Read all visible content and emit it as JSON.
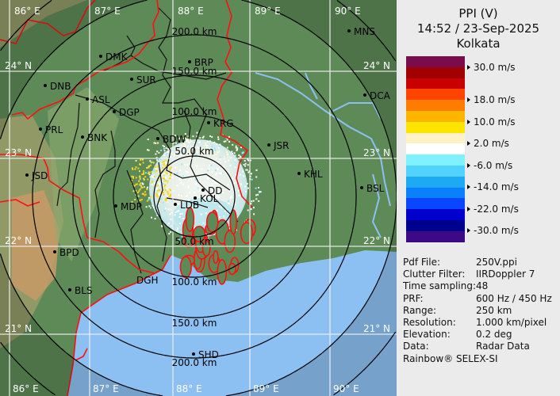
{
  "header": {
    "product": "PPI (V)",
    "datetime": "14:52 / 23-Sep-2025",
    "site": "Kolkata"
  },
  "legend": {
    "unit": "m/s",
    "colors": [
      "#7a0c4c",
      "#a00000",
      "#c80000",
      "#ff4400",
      "#ff7c00",
      "#ffb400",
      "#ffe400",
      "#fff2c4",
      "#ffffff",
      "#80f2ff",
      "#52d2ff",
      "#1eaaf2",
      "#0a80ff",
      "#0a46ff",
      "#0000cc",
      "#00008e",
      "#3c0a84"
    ],
    "ticks": [
      {
        "label": "30.0 m/s"
      },
      {
        "label": "18.0 m/s"
      },
      {
        "label": "10.0 m/s"
      },
      {
        "label": "2.0 m/s"
      },
      {
        "label": "-6.0 m/s"
      },
      {
        "label": "-14.0 m/s"
      },
      {
        "label": "-22.0 m/s"
      },
      {
        "label": "-30.0 m/s"
      }
    ]
  },
  "info": [
    {
      "key": "Pdf File:",
      "value": "250V.ppi"
    },
    {
      "key": "Clutter Filter:",
      "value": "IIRDoppler 7"
    },
    {
      "key": "Time sampling:",
      "value": "48"
    },
    {
      "key": "PRF:",
      "value": "600 Hz / 450 Hz"
    },
    {
      "key": "Range:",
      "value": "250 km"
    },
    {
      "key": "Resolution:",
      "value": "1.000 km/pixel"
    },
    {
      "key": "Elevation:",
      "value": "0.2 deg"
    },
    {
      "key": "Data:",
      "value": "Radar Data"
    }
  ],
  "footer": "Rainbow® SELEX-SI",
  "map": {
    "ring_labels": [
      "50.0 km",
      "100.0 km",
      "150.0 km",
      "200.0 km"
    ],
    "longitudes": [
      "86° E",
      "87° E",
      "88° E",
      "89° E",
      "90° E"
    ],
    "latitudes": [
      "24° N",
      "23° N",
      "22° N",
      "21° N"
    ],
    "stations": [
      "DMK",
      "DNB",
      "SUR",
      "ASL",
      "DGP",
      "PRL",
      "BNK",
      "BDW",
      "JSD",
      "MDP",
      "BPD",
      "BLS",
      "DGH",
      "BRP",
      "KRG",
      "JSR",
      "KHL",
      "MNS",
      "DCA",
      "BSL",
      "SHD",
      "DD",
      "KOL",
      "LDB"
    ]
  },
  "colors": {
    "land": "#5e8a58",
    "sea": "#8cc0f2",
    "border": "#ff1010",
    "grid": "#f0f0f0",
    "panel": "#ebebeb"
  }
}
